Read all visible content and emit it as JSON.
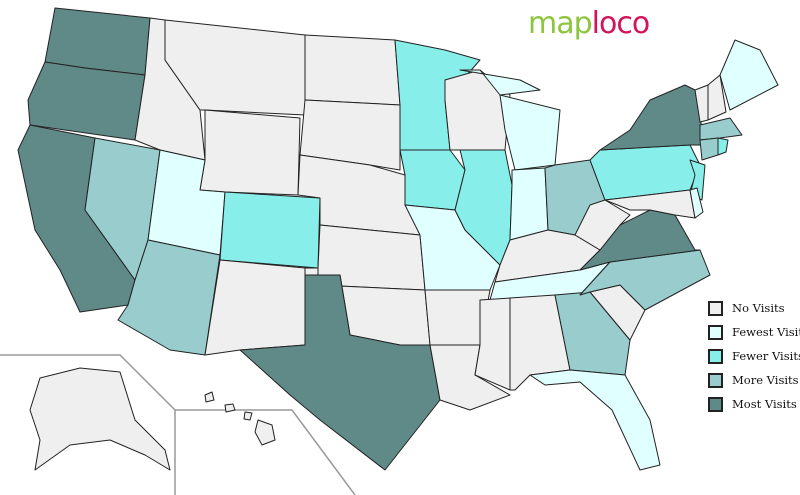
{
  "logo": {
    "part1": "map",
    "part2": "loco"
  },
  "legend": [
    {
      "label": "No Visits",
      "color": "#efefef"
    },
    {
      "label": "Fewest Visits",
      "color": "#e0ffff"
    },
    {
      "label": "Fewer Visits",
      "color": "#88eeea"
    },
    {
      "label": "More Visits",
      "color": "#99cccc"
    },
    {
      "label": "Most Visits",
      "color": "#5f8a88"
    }
  ],
  "state_visits": {
    "WA": "Most Visits",
    "OR": "Most Visits",
    "CA": "Most Visits",
    "TX": "Most Visits",
    "NY": "Most Visits",
    "VA": "Most Visits",
    "NV": "More Visits",
    "AZ": "More Visits",
    "OH": "More Visits",
    "NC": "More Visits",
    "GA": "More Visits",
    "MA": "More Visits",
    "CT": "More Visits",
    "MN": "Fewer Visits",
    "IA": "Fewer Visits",
    "IL": "Fewer Visits",
    "CO": "Fewer Visits",
    "PA": "Fewer Visits",
    "NJ": "Fewer Visits",
    "RI": "Fewer Visits",
    "UT": "Fewest Visits",
    "MO": "Fewest Visits",
    "IN": "Fewest Visits",
    "TN": "Fewest Visits",
    "MI": "Fewest Visits",
    "FL": "Fewest Visits",
    "ME": "Fewest Visits",
    "DE": "Fewest Visits",
    "ID": "No Visits",
    "MT": "No Visits",
    "WY": "No Visits",
    "NM": "No Visits",
    "ND": "No Visits",
    "SD": "No Visits",
    "NE": "No Visits",
    "KS": "No Visits",
    "OK": "No Visits",
    "AR": "No Visits",
    "LA": "No Visits",
    "WI": "No Visits",
    "KY": "No Visits",
    "MS": "No Visits",
    "AL": "No Visits",
    "SC": "No Visits",
    "WV": "No Visits",
    "MD": "No Visits",
    "VT": "No Visits",
    "NH": "No Visits",
    "AK": "No Visits",
    "HI": "No Visits"
  }
}
